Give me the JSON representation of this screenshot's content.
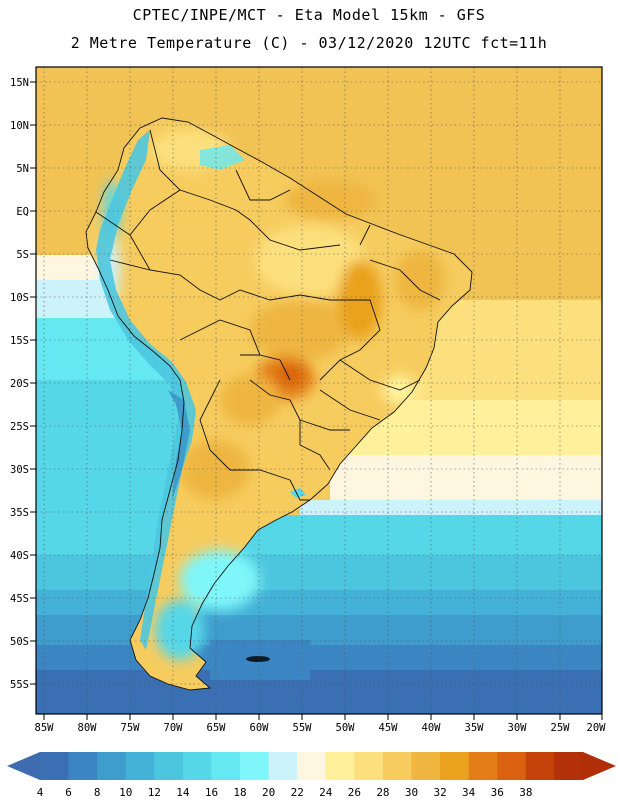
{
  "header": {
    "line1": "CPTEC/INPE/MCT -  Eta Model 15km - GFS",
    "line2": "2 Metre Temperature (C) - 03/12/2020 12UTC fct=11h"
  },
  "map": {
    "region": "South America",
    "lat_labels": [
      "15N",
      "10N",
      "5N",
      "EQ",
      "5S",
      "10S",
      "15S",
      "20S",
      "25S",
      "30S",
      "35S",
      "40S",
      "45S",
      "50S",
      "55S"
    ],
    "lon_labels": [
      "85W",
      "80W",
      "75W",
      "70W",
      "65W",
      "60W",
      "55W",
      "50W",
      "45W",
      "40W",
      "35W",
      "30W",
      "25W",
      "20W"
    ]
  },
  "colorbar": {
    "unit": "C",
    "ticks": [
      "4",
      "6",
      "8",
      "10",
      "12",
      "14",
      "16",
      "18",
      "20",
      "22",
      "24",
      "26",
      "28",
      "30",
      "32",
      "34",
      "36",
      "38"
    ],
    "colors": [
      "#3a6fb3",
      "#3b86c2",
      "#3e9dcc",
      "#44b2d6",
      "#4cc6df",
      "#56d7e8",
      "#66e8f2",
      "#7ff6f9",
      "#ccf2fa",
      "#fff6e0",
      "#fff19b",
      "#fde07e",
      "#f6cc5f",
      "#eeb63f",
      "#eaa21f",
      "#e47f17",
      "#d9610f",
      "#c4420a",
      "#b33008"
    ],
    "under_color": "#3f6bb0",
    "over_color": "#b02e08"
  }
}
